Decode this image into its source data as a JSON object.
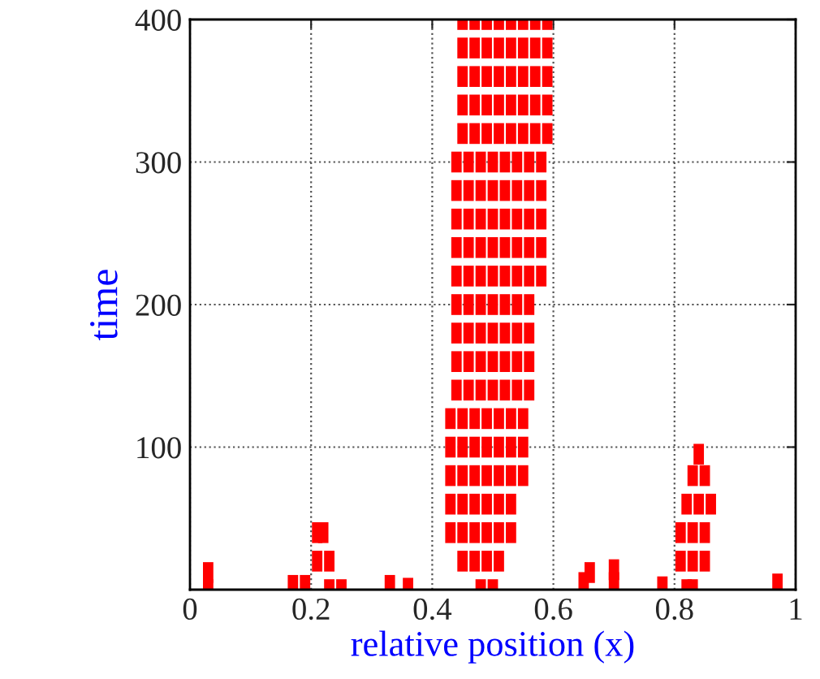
{
  "chart_data": {
    "type": "scatter",
    "xlabel": "relative position (x)",
    "ylabel": "time",
    "xlim": [
      0,
      1
    ],
    "ylim": [
      0,
      400
    ],
    "xticks": [
      0,
      0.2,
      0.4,
      0.6,
      0.8,
      1
    ],
    "yticks": [
      100,
      200,
      300,
      400
    ],
    "grid": true,
    "marker": "square",
    "series": [
      {
        "color": "#ff0000",
        "x": [
          0.48,
          0.5,
          0.45,
          0.47,
          0.49,
          0.51,
          0.43,
          0.45,
          0.47,
          0.49,
          0.51,
          0.53,
          0.43,
          0.45,
          0.47,
          0.49,
          0.51,
          0.53,
          0.43,
          0.45,
          0.47,
          0.49,
          0.51,
          0.53,
          0.55,
          0.43,
          0.45,
          0.47,
          0.49,
          0.51,
          0.53,
          0.55,
          0.43,
          0.45,
          0.47,
          0.49,
          0.51,
          0.53,
          0.55,
          0.44,
          0.46,
          0.48,
          0.5,
          0.52,
          0.54,
          0.56,
          0.44,
          0.46,
          0.48,
          0.5,
          0.52,
          0.54,
          0.56,
          0.44,
          0.46,
          0.48,
          0.5,
          0.52,
          0.54,
          0.56,
          0.44,
          0.46,
          0.48,
          0.5,
          0.52,
          0.54,
          0.56,
          0.44,
          0.46,
          0.48,
          0.5,
          0.52,
          0.54,
          0.56,
          0.58,
          0.44,
          0.46,
          0.48,
          0.5,
          0.52,
          0.54,
          0.56,
          0.58,
          0.44,
          0.46,
          0.48,
          0.5,
          0.52,
          0.54,
          0.56,
          0.58,
          0.44,
          0.46,
          0.48,
          0.5,
          0.52,
          0.54,
          0.56,
          0.58,
          0.44,
          0.46,
          0.48,
          0.5,
          0.52,
          0.54,
          0.56,
          0.58,
          0.45,
          0.47,
          0.49,
          0.51,
          0.53,
          0.55,
          0.57,
          0.59,
          0.45,
          0.47,
          0.49,
          0.51,
          0.53,
          0.55,
          0.57,
          0.59,
          0.45,
          0.47,
          0.49,
          0.51,
          0.53,
          0.55,
          0.57,
          0.59,
          0.45,
          0.47,
          0.49,
          0.51,
          0.53,
          0.55,
          0.57,
          0.59,
          0.45,
          0.47,
          0.49,
          0.51,
          0.53,
          0.55,
          0.57,
          0.59,
          0.82,
          0.83,
          0.81,
          0.83,
          0.85,
          0.81,
          0.83,
          0.85,
          0.82,
          0.84,
          0.86,
          0.83,
          0.85,
          0.84,
          0.23,
          0.25,
          0.21,
          0.23,
          0.21,
          0.22,
          0.03,
          0.03,
          0.17,
          0.19,
          0.33,
          0.36,
          0.65,
          0.66,
          0.7,
          0.7,
          0.78,
          0.97
        ],
        "values": [
          0,
          0,
          20,
          20,
          20,
          20,
          40,
          40,
          40,
          40,
          40,
          40,
          60,
          60,
          60,
          60,
          60,
          60,
          80,
          80,
          80,
          80,
          80,
          80,
          80,
          100,
          100,
          100,
          100,
          100,
          100,
          100,
          120,
          120,
          120,
          120,
          120,
          120,
          120,
          140,
          140,
          140,
          140,
          140,
          140,
          140,
          160,
          160,
          160,
          160,
          160,
          160,
          160,
          180,
          180,
          180,
          180,
          180,
          180,
          180,
          200,
          200,
          200,
          200,
          200,
          200,
          200,
          220,
          220,
          220,
          220,
          220,
          220,
          220,
          220,
          240,
          240,
          240,
          240,
          240,
          240,
          240,
          240,
          260,
          260,
          260,
          260,
          260,
          260,
          260,
          260,
          280,
          280,
          280,
          280,
          280,
          280,
          280,
          280,
          300,
          300,
          300,
          300,
          300,
          300,
          300,
          300,
          320,
          320,
          320,
          320,
          320,
          320,
          320,
          320,
          340,
          340,
          340,
          340,
          340,
          340,
          340,
          340,
          360,
          360,
          360,
          360,
          360,
          360,
          360,
          360,
          380,
          380,
          380,
          380,
          380,
          380,
          380,
          380,
          400,
          400,
          400,
          400,
          400,
          400,
          400,
          400,
          0,
          0,
          20,
          20,
          20,
          40,
          40,
          40,
          60,
          60,
          60,
          80,
          80,
          95,
          0,
          0,
          20,
          20,
          40,
          40,
          0,
          12,
          3,
          3,
          3,
          1,
          5,
          12,
          5,
          14,
          2,
          4
        ]
      }
    ]
  }
}
